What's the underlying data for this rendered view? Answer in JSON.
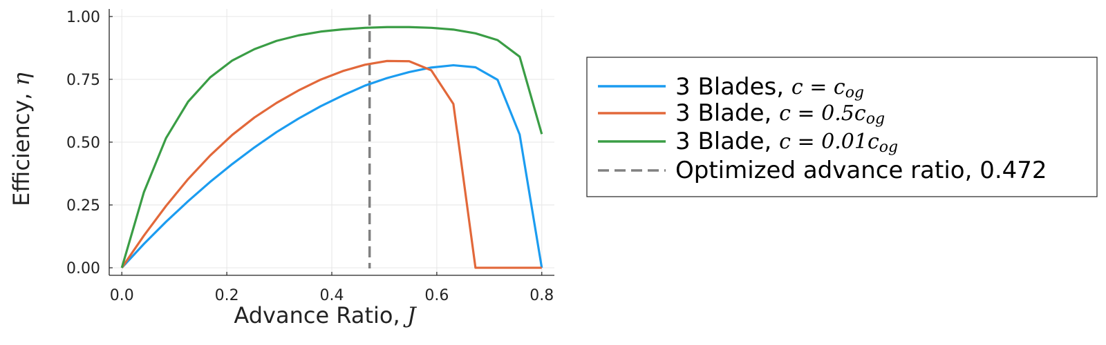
{
  "chart_data": {
    "type": "line",
    "xlabel": "Advance Ratio,",
    "xlabel_symbol": "J",
    "ylabel": "Efficiency,",
    "ylabel_symbol": "η",
    "xlim": [
      -0.024,
      0.824
    ],
    "ylim": [
      -0.03,
      1.03
    ],
    "xticks": [
      0.0,
      0.2,
      0.4,
      0.6,
      0.8
    ],
    "xtick_labels": [
      "0.0",
      "0.2",
      "0.4",
      "0.6",
      "0.8"
    ],
    "yticks": [
      0.0,
      0.25,
      0.5,
      0.75,
      1.0
    ],
    "ytick_labels": [
      "0.00",
      "0.25",
      "0.50",
      "0.75",
      "1.00"
    ],
    "grid": true,
    "legend_position": "outside-right",
    "x": [
      0.0,
      0.0421,
      0.0842,
      0.1263,
      0.1684,
      0.2105,
      0.2526,
      0.2947,
      0.3368,
      0.3789,
      0.4211,
      0.4632,
      0.5053,
      0.5474,
      0.5895,
      0.6316,
      0.6737,
      0.7158,
      0.7579,
      0.8
    ],
    "series": [
      {
        "name": "3 Blades, ",
        "math": "c = c",
        "sub": "og",
        "color": "#1b9cf0",
        "values": [
          0.0,
          0.095,
          0.183,
          0.265,
          0.342,
          0.413,
          0.479,
          0.54,
          0.594,
          0.643,
          0.686,
          0.725,
          0.755,
          0.779,
          0.797,
          0.806,
          0.798,
          0.748,
          0.53,
          0.0
        ]
      },
      {
        "name": "3 Blade, ",
        "math": "c = 0.5c",
        "sub": "og",
        "color": "#e2683a",
        "values": [
          0.0,
          0.128,
          0.246,
          0.353,
          0.447,
          0.529,
          0.598,
          0.656,
          0.706,
          0.749,
          0.783,
          0.808,
          0.823,
          0.822,
          0.786,
          0.652,
          0.0,
          0.0,
          0.0,
          0.0
        ]
      },
      {
        "name": "3 Blade, ",
        "math": "c = 0.01c",
        "sub": "og",
        "color": "#3a9d45",
        "values": [
          0.0,
          0.301,
          0.516,
          0.661,
          0.758,
          0.825,
          0.87,
          0.903,
          0.925,
          0.94,
          0.949,
          0.955,
          0.958,
          0.958,
          0.955,
          0.948,
          0.933,
          0.906,
          0.84,
          0.532
        ]
      }
    ],
    "reference_line": {
      "name": "Optimized advance ratio, 0.472",
      "x": 0.472,
      "color": "#808080"
    }
  }
}
